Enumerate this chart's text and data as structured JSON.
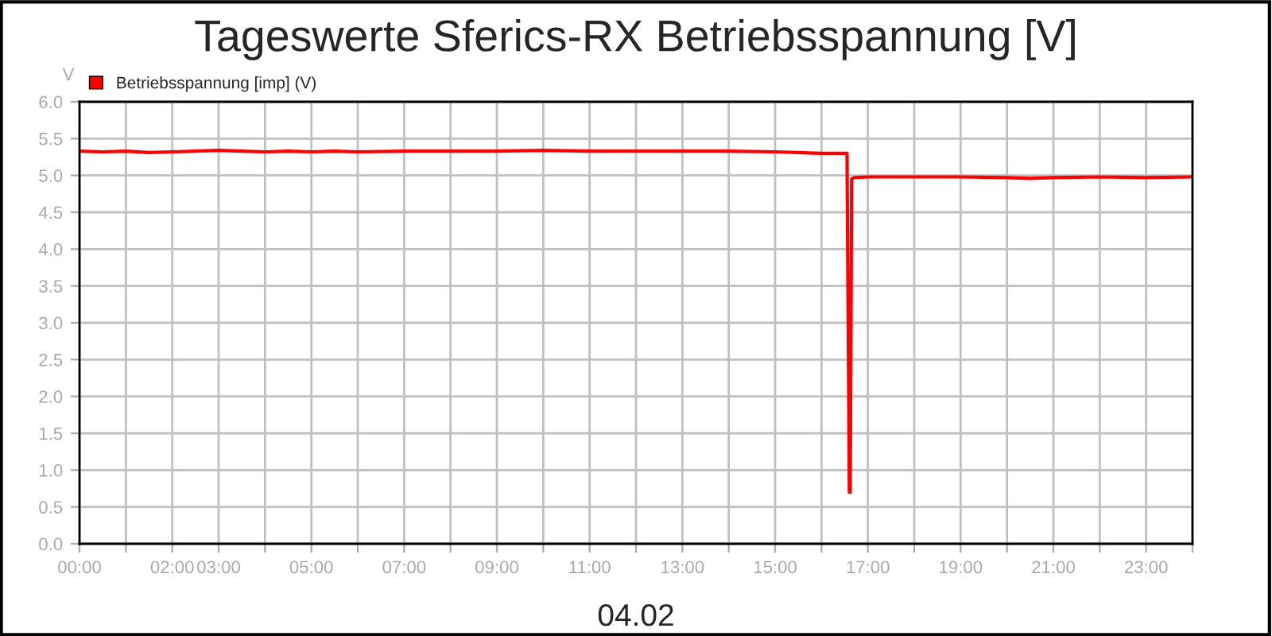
{
  "chart_data": {
    "type": "line",
    "title": "Tageswerte Sferics-RX Betriebsspannung [V]",
    "xlabel": "04.02",
    "ylabel": "V",
    "x": [
      0,
      0.5,
      1,
      1.5,
      2,
      2.5,
      3,
      3.5,
      4,
      4.5,
      5,
      5.5,
      6,
      7,
      8,
      9,
      10,
      11,
      12,
      13,
      14,
      15,
      15.5,
      16,
      16.55,
      16.6,
      16.62,
      16.65,
      16.7,
      17,
      17.5,
      18,
      19,
      20,
      20.5,
      21,
      22,
      23,
      24
    ],
    "series": [
      {
        "name": "Betriebsspannung [imp] (V)",
        "color": "#ff0000",
        "values": [
          5.33,
          5.32,
          5.33,
          5.31,
          5.32,
          5.33,
          5.34,
          5.33,
          5.32,
          5.33,
          5.32,
          5.33,
          5.32,
          5.33,
          5.33,
          5.33,
          5.34,
          5.33,
          5.33,
          5.33,
          5.33,
          5.32,
          5.31,
          5.3,
          5.3,
          0.7,
          0.7,
          4.95,
          4.97,
          4.98,
          4.98,
          4.98,
          4.98,
          4.97,
          4.96,
          4.97,
          4.98,
          4.97,
          4.98
        ]
      }
    ],
    "xlim": [
      0,
      24
    ],
    "ylim": [
      0,
      6
    ],
    "xticks": [
      {
        "value": 0,
        "label": "00:00"
      },
      {
        "value": 1,
        "label": null
      },
      {
        "value": 2,
        "label": "02:00"
      },
      {
        "value": 3,
        "label": "03:00"
      },
      {
        "value": 4,
        "label": null
      },
      {
        "value": 5,
        "label": "05:00"
      },
      {
        "value": 6,
        "label": null
      },
      {
        "value": 7,
        "label": "07:00"
      },
      {
        "value": 8,
        "label": null
      },
      {
        "value": 9,
        "label": "09:00"
      },
      {
        "value": 10,
        "label": null
      },
      {
        "value": 11,
        "label": "11:00"
      },
      {
        "value": 12,
        "label": null
      },
      {
        "value": 13,
        "label": "13:00"
      },
      {
        "value": 14,
        "label": null
      },
      {
        "value": 15,
        "label": "15:00"
      },
      {
        "value": 16,
        "label": null
      },
      {
        "value": 17,
        "label": "17:00"
      },
      {
        "value": 18,
        "label": null
      },
      {
        "value": 19,
        "label": "19:00"
      },
      {
        "value": 20,
        "label": null
      },
      {
        "value": 21,
        "label": "21:00"
      },
      {
        "value": 22,
        "label": null
      },
      {
        "value": 23,
        "label": "23:00"
      },
      {
        "value": 24,
        "label": null
      }
    ],
    "yticks": [
      {
        "value": 0,
        "label": "0.0"
      },
      {
        "value": 0.5,
        "label": "0.5"
      },
      {
        "value": 1,
        "label": "1.0"
      },
      {
        "value": 1.5,
        "label": "1.5"
      },
      {
        "value": 2,
        "label": "2.0"
      },
      {
        "value": 2.5,
        "label": "2.5"
      },
      {
        "value": 3,
        "label": "3.0"
      },
      {
        "value": 3.5,
        "label": "3.5"
      },
      {
        "value": 4,
        "label": "4.0"
      },
      {
        "value": 4.5,
        "label": "4.5"
      },
      {
        "value": 5,
        "label": "5.0"
      },
      {
        "value": 5.5,
        "label": "5.5"
      },
      {
        "value": 6,
        "label": "6.0"
      }
    ],
    "grid": true,
    "legend": "top left",
    "marker": "none",
    "line_style": "solid"
  }
}
